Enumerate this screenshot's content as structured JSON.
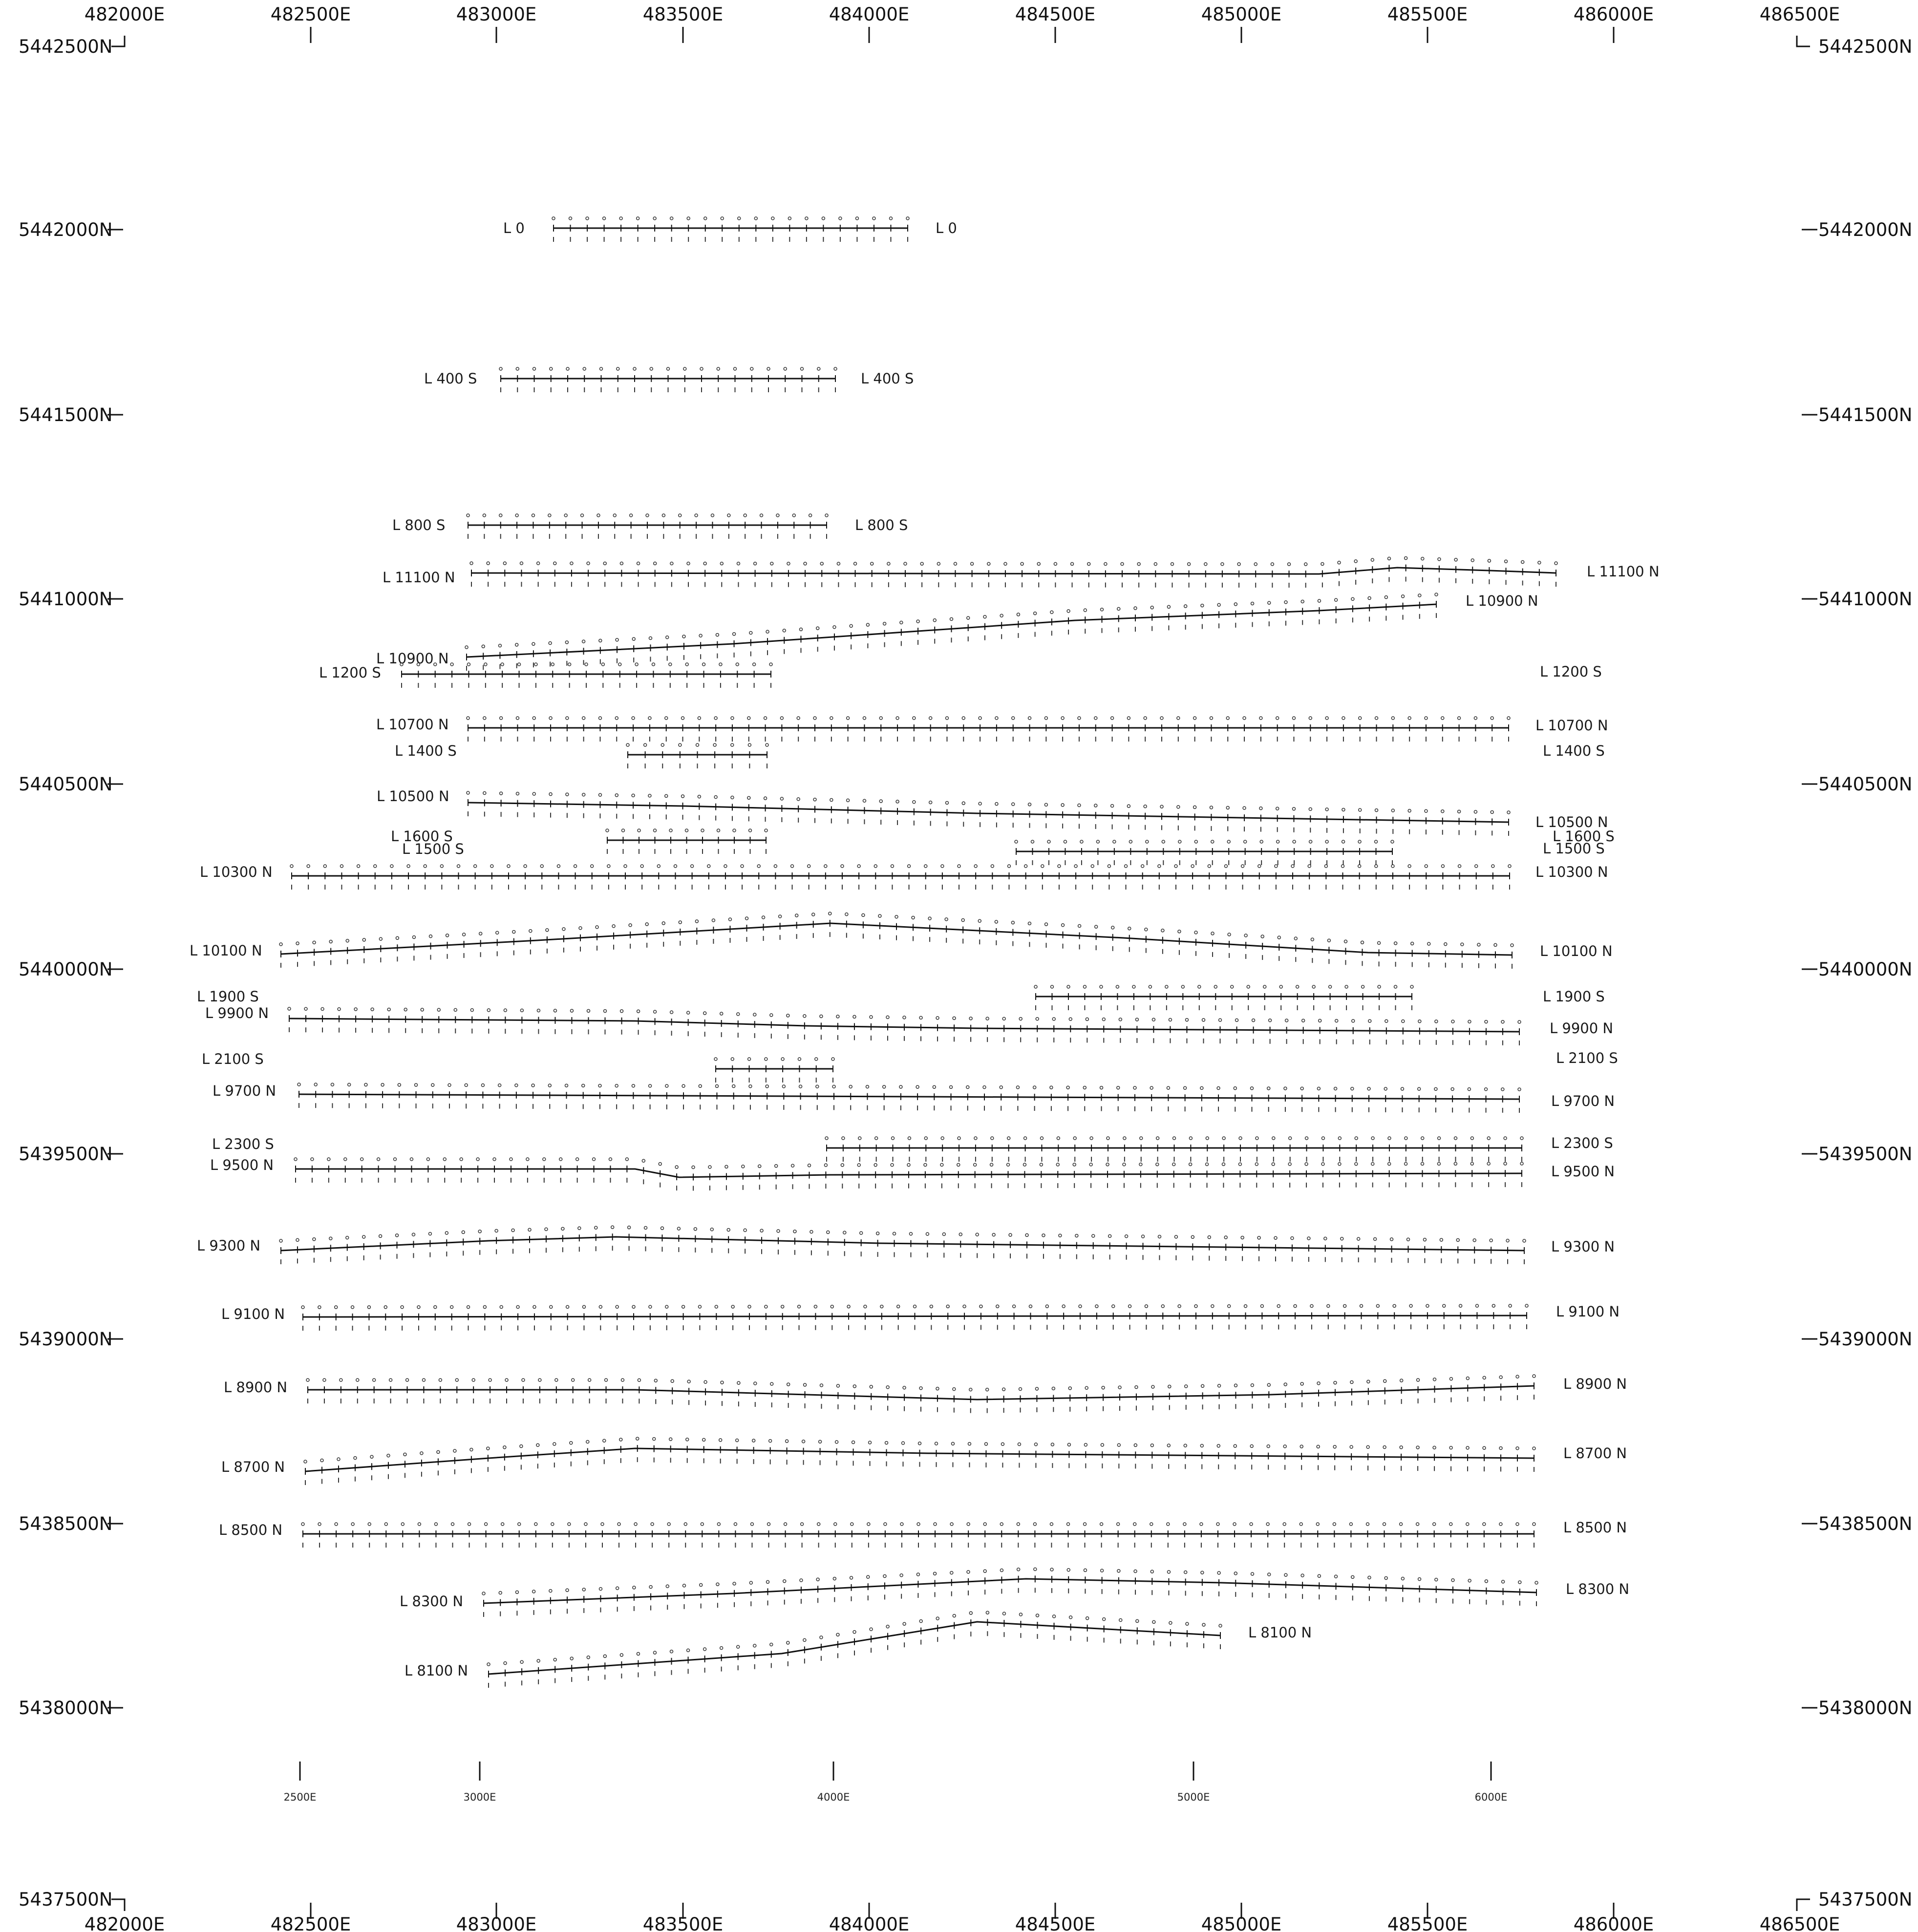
{
  "map": {
    "top_easting_labels": [
      "482000E",
      "482500E",
      "483000E",
      "483500E",
      "484000E",
      "484500E",
      "485000E",
      "485500E",
      "486000E",
      "486500E"
    ],
    "bottom_easting_labels": [
      "482000E",
      "482500E",
      "483000E",
      "483500E",
      "484000E",
      "484500E",
      "485000E",
      "485500E",
      "486000E",
      "486500E"
    ],
    "left_northing_labels": [
      "5442500N",
      "5442000N",
      "5441500N",
      "5441000N",
      "5440500N",
      "5440000N",
      "5439500N",
      "5439000N",
      "5438500N",
      "5438000N",
      "5437500N"
    ],
    "right_northing_labels": [
      "5442500N",
      "5442000N",
      "5441500N",
      "5441000N",
      "5440500N",
      "5440000N",
      "5439500N",
      "5439000N",
      "5438500N",
      "5438000N",
      "5437500N"
    ],
    "local_grid_labels": [
      "2500E",
      "3000E",
      "4000E",
      "5000E",
      "6000E"
    ],
    "lines": [
      {
        "name": "L 0",
        "start_label": "L 0",
        "end_label": "L 0"
      },
      {
        "name": "L 400 S",
        "start_label": "L 400 S",
        "end_label": "L 400 S"
      },
      {
        "name": "L 800 S",
        "start_label": "L 800 S",
        "end_label": "L 800 S"
      },
      {
        "name": "L 11100 N",
        "start_label": "L 11100 N",
        "end_label": "L 11100 N"
      },
      {
        "name": "L 10900 N",
        "start_label": "L 10900 N",
        "end_label": "L 10900 N"
      },
      {
        "name": "L 1200 S",
        "start_label": "L 1200 S",
        "end_label": "L 1200 S"
      },
      {
        "name": "L 10700 N",
        "start_label": "L 10700 N",
        "end_label": "L 10700 N"
      },
      {
        "name": "L 1400 S",
        "start_label": "L 1400 S",
        "end_label": "L 1400 S"
      },
      {
        "name": "L 10500 N",
        "start_label": "L 10500 N",
        "end_label": "L 10500 N"
      },
      {
        "name": "L 1600 S",
        "start_label": "L 1600 S",
        "end_label": "L 1600 S"
      },
      {
        "name": "L 1500 S",
        "start_label": "L 1500 S",
        "end_label": "L 1500 S"
      },
      {
        "name": "L 10300 N",
        "start_label": "L 10300 N",
        "end_label": "L 10300 N"
      },
      {
        "name": "L 10100 N",
        "start_label": "L 10100 N",
        "end_label": "L 10100 N"
      },
      {
        "name": "L 1900 S",
        "start_label": "L 1900 S",
        "end_label": "L 1900 S"
      },
      {
        "name": "L 9900 N",
        "start_label": "L 9900 N",
        "end_label": "L 9900 N"
      },
      {
        "name": "L 2100 S",
        "start_label": "L 2100 S",
        "end_label": "L 2100 S"
      },
      {
        "name": "L 9700 N",
        "start_label": "L 9700 N",
        "end_label": "L 9700 N"
      },
      {
        "name": "L 2300 S",
        "start_label": "L 2300 S",
        "end_label": "L 2300 S"
      },
      {
        "name": "L 9500 N",
        "start_label": "L 9500 N",
        "end_label": "L 9500 N"
      },
      {
        "name": "L 9300 N",
        "start_label": "L 9300 N",
        "end_label": "L 9300 N"
      },
      {
        "name": "L 9100 N",
        "start_label": "L 9100 N",
        "end_label": "L 9100 N"
      },
      {
        "name": "L 8900 N",
        "start_label": "L 8900 N",
        "end_label": "L 8900 N"
      },
      {
        "name": "L 8700 N",
        "start_label": "L 8700 N",
        "end_label": "L 8700 N"
      },
      {
        "name": "L 8500 N",
        "start_label": "L 8500 N",
        "end_label": "L 8500 N"
      },
      {
        "name": "L 8300 N",
        "start_label": "L 8300 N",
        "end_label": "L 8300 N"
      },
      {
        "name": "L 8100 N",
        "start_label": "L 8100 N",
        "end_label": "L 8100 N"
      }
    ],
    "colors": {
      "ink": "#111111",
      "paper": "#ffffff"
    }
  }
}
